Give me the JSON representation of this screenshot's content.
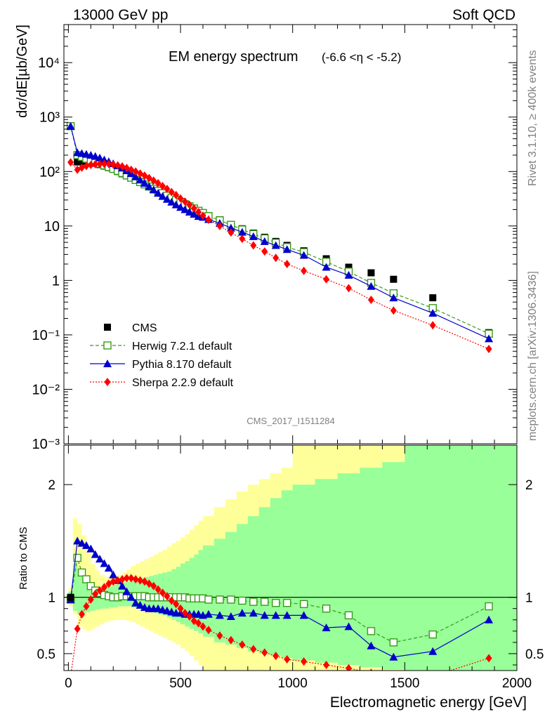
{
  "header": {
    "left": "13000 GeV pp",
    "right": "Soft QCD"
  },
  "side_labels": {
    "rivet": "Rivet 3.1.10, ≥ 400k events",
    "mcplots": "mcplots.cern.ch [arXiv:1306.3436]"
  },
  "watermark": "CMS_2017_I1511284",
  "colors": {
    "cms": "#000000",
    "herwig": "#3a9a1a",
    "pythia": "#0000cc",
    "sherpa": "#ff0000",
    "band_yellow": "#ffff99",
    "band_green": "#99ff99"
  },
  "chart_data": [
    {
      "type": "scatter",
      "title_main": "EM energy spectrum",
      "title_sub": "(-6.6 <η < -5.2)",
      "ylabel": "dσ/dE[µb/GeV]",
      "yscale": "log",
      "ylim": [
        0.001,
        50000
      ],
      "xlim": [
        -20,
        2000
      ],
      "y_ticks": [
        {
          "v": 10000,
          "label": "10⁴"
        },
        {
          "v": 1000,
          "label": "10³"
        },
        {
          "v": 100,
          "label": "10²"
        },
        {
          "v": 10,
          "label": "10"
        },
        {
          "v": 1,
          "label": "1"
        },
        {
          "v": 0.1,
          "label": "10⁻¹"
        },
        {
          "v": 0.01,
          "label": "10⁻²"
        },
        {
          "v": 0.001,
          "label": "10⁻³"
        }
      ],
      "legend": [
        {
          "key": "cms",
          "label": "CMS"
        },
        {
          "key": "herwig",
          "label": "Herwig 7.2.1 default"
        },
        {
          "key": "pythia",
          "label": "Pythia 8.170 default"
        },
        {
          "key": "sherpa",
          "label": "Sherpa 2.2.9 default"
        }
      ],
      "x": [
        10,
        40,
        60,
        80,
        100,
        120,
        140,
        160,
        180,
        200,
        220,
        240,
        260,
        280,
        300,
        320,
        340,
        360,
        380,
        400,
        420,
        440,
        460,
        480,
        500,
        520,
        540,
        560,
        580,
        600,
        625,
        675,
        725,
        775,
        825,
        875,
        925,
        975,
        1050,
        1150,
        1250,
        1350,
        1450,
        1625,
        1875
      ],
      "series": [
        {
          "key": "cms",
          "name": "CMS",
          "values": [
            690,
            150,
            155,
            152,
            148,
            142,
            134,
            126,
            118,
            110,
            100,
            91,
            83,
            76,
            69,
            63,
            58,
            53,
            48,
            44,
            40,
            36,
            33,
            30,
            27.5,
            25,
            23,
            21,
            19,
            17.5,
            15.5,
            13,
            10.7,
            8.9,
            7.4,
            6.2,
            5.2,
            4.4,
            3.5,
            2.5,
            1.75,
            1.38,
            1.05,
            0.48,
            0.11
          ]
        },
        {
          "key": "herwig",
          "name": "Herwig 7.2.1 default",
          "values": [
            680,
            200,
            186,
            172,
            162,
            150,
            140,
            130,
            121,
            112,
            103,
            94,
            85,
            77,
            70,
            64,
            58,
            53,
            48,
            44,
            40,
            36,
            33,
            30,
            27.5,
            25,
            23,
            21,
            19,
            17.3,
            15.2,
            12.7,
            10.5,
            8.6,
            7.1,
            5.9,
            4.9,
            4.1,
            3.3,
            2.2,
            1.45,
            0.9,
            0.58,
            0.31,
            0.105
          ]
        },
        {
          "key": "pythia",
          "name": "Pythia 8.170 default",
          "values": [
            680,
            222,
            215,
            208,
            200,
            190,
            178,
            164,
            152,
            140,
            128,
            116,
            104,
            92,
            80,
            70,
            61,
            53,
            46,
            40,
            35,
            31,
            27.5,
            24.5,
            22,
            20,
            18,
            16.5,
            15,
            14.5,
            13.2,
            11.2,
            9.2,
            7.7,
            6.4,
            5.2,
            4.4,
            3.7,
            2.9,
            1.75,
            1.25,
            0.78,
            0.48,
            0.25,
            0.085
          ]
        },
        {
          "key": "sherpa",
          "name": "Sherpa 2.2.9 default",
          "values": [
            148,
            108,
            118,
            126,
            132,
            136,
            138,
            138,
            137,
            134,
            130,
            124,
            116,
            108,
            100,
            92,
            84,
            76,
            68,
            61,
            54,
            48,
            42,
            37,
            32,
            28,
            24.5,
            21,
            18,
            15.5,
            13,
            10,
            7.6,
            5.8,
            4.4,
            3.4,
            2.6,
            2.0,
            1.5,
            1.05,
            0.72,
            0.44,
            0.28,
            0.15,
            0.055
          ]
        }
      ]
    },
    {
      "type": "line",
      "ylabel": "Ratio to CMS",
      "xlabel": "Electromagnetic energy [GeV]",
      "ylim": [
        0.35,
        2.35
      ],
      "xlim": [
        -20,
        2000
      ],
      "y_ticks": [
        {
          "v": 2,
          "label": "2"
        },
        {
          "v": 1,
          "label": "1"
        },
        {
          "v": 0.5,
          "label": "0.5"
        }
      ],
      "x_ticks": [
        {
          "v": 0,
          "label": "0"
        },
        {
          "v": 500,
          "label": "500"
        },
        {
          "v": 1000,
          "label": "1000"
        },
        {
          "v": 1500,
          "label": "1500"
        },
        {
          "v": 2000,
          "label": "2000"
        }
      ],
      "x": [
        10,
        40,
        60,
        80,
        100,
        120,
        140,
        160,
        180,
        200,
        220,
        240,
        260,
        280,
        300,
        320,
        340,
        360,
        380,
        400,
        420,
        440,
        460,
        480,
        500,
        520,
        540,
        560,
        580,
        600,
        625,
        675,
        725,
        775,
        825,
        875,
        925,
        975,
        1050,
        1150,
        1250,
        1350,
        1450,
        1625,
        1875
      ],
      "series": [
        {
          "key": "herwig",
          "name": "Herwig 7.2.1 default",
          "values": [
            0.98,
            1.35,
            1.22,
            1.16,
            1.1,
            1.06,
            1.04,
            1.02,
            1.01,
            1.0,
            1.0,
            1.01,
            1.01,
            1.01,
            1.01,
            1.01,
            1.01,
            1.0,
            1.0,
            1.0,
            1.0,
            1.0,
            1.0,
            1.0,
            1.0,
            1.0,
            0.99,
            0.99,
            0.99,
            0.99,
            0.98,
            0.98,
            0.98,
            0.97,
            0.96,
            0.96,
            0.95,
            0.95,
            0.94,
            0.9,
            0.84,
            0.7,
            0.6,
            0.67,
            0.92
          ]
        },
        {
          "key": "pythia",
          "name": "Pythia 8.170 default",
          "values": [
            0.98,
            1.5,
            1.48,
            1.46,
            1.43,
            1.38,
            1.34,
            1.3,
            1.26,
            1.2,
            1.15,
            1.1,
            1.05,
            1.0,
            0.95,
            0.93,
            0.91,
            0.9,
            0.9,
            0.9,
            0.89,
            0.88,
            0.87,
            0.86,
            0.86,
            0.85,
            0.85,
            0.85,
            0.85,
            0.84,
            0.85,
            0.84,
            0.83,
            0.86,
            0.86,
            0.84,
            0.84,
            0.84,
            0.84,
            0.73,
            0.74,
            0.57,
            0.47,
            0.52,
            0.8
          ]
        },
        {
          "key": "sherpa",
          "name": "Sherpa 2.2.9 default",
          "values": [
            0.3,
            0.72,
            0.85,
            0.92,
            0.98,
            1.03,
            1.06,
            1.09,
            1.12,
            1.14,
            1.15,
            1.16,
            1.17,
            1.17,
            1.16,
            1.15,
            1.14,
            1.12,
            1.1,
            1.07,
            1.04,
            1.01,
            0.97,
            0.94,
            0.9,
            0.86,
            0.83,
            0.79,
            0.77,
            0.74,
            0.71,
            0.66,
            0.62,
            0.58,
            0.54,
            0.51,
            0.48,
            0.45,
            0.43,
            0.4,
            0.37,
            0.33,
            0.3,
            0.3,
            0.46
          ]
        }
      ],
      "bands": {
        "edges": [
          0,
          20,
          40,
          60,
          80,
          100,
          120,
          140,
          160,
          180,
          200,
          220,
          240,
          260,
          280,
          300,
          320,
          340,
          360,
          380,
          400,
          420,
          440,
          460,
          480,
          500,
          520,
          540,
          560,
          580,
          600,
          650,
          700,
          750,
          800,
          850,
          900,
          950,
          1000,
          1100,
          1200,
          1300,
          1400,
          1500,
          1750,
          2000
        ],
        "yellow_lo": [
          0.92,
          0.85,
          0.75,
          0.72,
          0.7,
          0.72,
          0.74,
          0.76,
          0.78,
          0.79,
          0.8,
          0.8,
          0.8,
          0.79,
          0.78,
          0.76,
          0.74,
          0.72,
          0.7,
          0.68,
          0.66,
          0.64,
          0.62,
          0.6,
          0.58,
          0.55,
          0.52,
          0.48,
          0.44,
          0.4,
          0.35,
          0.35,
          0.35,
          0.35,
          0.35,
          0.35,
          0.35,
          0.35,
          0.35,
          0.35,
          0.35,
          0.35,
          0.35,
          0.35,
          0.35
        ],
        "yellow_hi": [
          1.08,
          1.7,
          1.65,
          1.55,
          1.4,
          1.3,
          1.24,
          1.2,
          1.18,
          1.18,
          1.18,
          1.2,
          1.22,
          1.25,
          1.28,
          1.3,
          1.32,
          1.34,
          1.36,
          1.38,
          1.4,
          1.42,
          1.45,
          1.48,
          1.5,
          1.53,
          1.56,
          1.6,
          1.64,
          1.68,
          1.72,
          1.8,
          1.87,
          1.94,
          2.0,
          2.05,
          2.1,
          2.15,
          2.35,
          2.35,
          2.35,
          2.35,
          2.35,
          2.35,
          2.35
        ],
        "green_lo": [
          0.95,
          0.88,
          0.85,
          0.86,
          0.87,
          0.88,
          0.89,
          0.9,
          0.9,
          0.91,
          0.91,
          0.92,
          0.92,
          0.92,
          0.91,
          0.9,
          0.89,
          0.88,
          0.87,
          0.86,
          0.85,
          0.84,
          0.82,
          0.8,
          0.78,
          0.76,
          0.74,
          0.72,
          0.7,
          0.68,
          0.65,
          0.6,
          0.58,
          0.55,
          0.52,
          0.5,
          0.48,
          0.46,
          0.44,
          0.42,
          0.4,
          0.38,
          0.36,
          0.35,
          0.35
        ],
        "green_hi": [
          1.05,
          1.3,
          1.25,
          1.18,
          1.12,
          1.09,
          1.08,
          1.08,
          1.09,
          1.1,
          1.11,
          1.12,
          1.13,
          1.14,
          1.15,
          1.16,
          1.17,
          1.18,
          1.19,
          1.2,
          1.21,
          1.22,
          1.23,
          1.25,
          1.27,
          1.3,
          1.32,
          1.35,
          1.38,
          1.42,
          1.46,
          1.52,
          1.58,
          1.65,
          1.72,
          1.8,
          1.88,
          1.95,
          2.0,
          2.05,
          2.1,
          2.15,
          2.2,
          2.35,
          2.35
        ]
      }
    }
  ]
}
